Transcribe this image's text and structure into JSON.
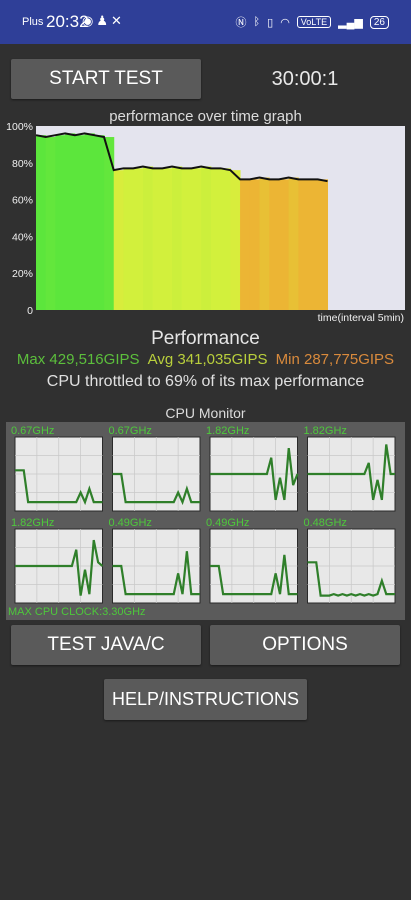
{
  "status_bar": {
    "carrier": "Plus",
    "time": "20:32",
    "network_badge": "VoLTE",
    "battery": "26"
  },
  "controls": {
    "start_label": "START TEST",
    "timer": "30:00:1",
    "java_c_label": "TEST JAVA/C",
    "options_label": "OPTIONS",
    "help_label": "HELP/INSTRUCTIONS"
  },
  "colors": {
    "background": "#303030",
    "max_stat": "#5cbf3c",
    "avg_stat": "#b9cf3c",
    "min_stat": "#d98a3c",
    "plot_line": "#2f7f2a",
    "cpu_text": "#4ec83c"
  },
  "chart_data": [
    {
      "type": "area",
      "title": "performance over time graph",
      "xlabel": "time(interval 5min)",
      "y_ticks": [
        "100%",
        "80%",
        "60%",
        "40%",
        "20%",
        "0"
      ],
      "ylim": [
        0,
        100
      ],
      "xlim": [
        0,
        30
      ],
      "grid": false,
      "x": [
        0,
        1,
        2,
        3,
        4,
        5,
        6,
        7,
        8,
        9,
        10,
        11,
        12,
        13,
        14,
        15,
        16,
        17,
        18,
        19,
        20,
        21,
        22,
        23,
        24,
        25,
        26,
        27,
        28,
        29,
        30
      ],
      "series": [
        {
          "values": [
            95,
            94,
            95,
            96,
            95,
            96,
            95,
            94,
            76,
            77,
            77,
            78,
            77,
            77,
            78,
            77,
            77,
            78,
            77,
            77,
            76,
            71,
            71,
            72,
            71,
            71,
            72,
            71,
            71,
            71,
            70
          ]
        }
      ]
    },
    {
      "type": "line",
      "title": "CPU Monitor",
      "cores": [
        {
          "freq": "0.67GHz",
          "values": [
            0.55,
            0.55,
            0.55,
            0.12,
            0.12,
            0.12,
            0.12,
            0.12,
            0.12,
            0.12,
            0.12,
            0.12,
            0.12,
            0.12,
            0.12,
            0.25,
            0.12,
            0.3,
            0.12,
            0.12,
            0.12
          ]
        },
        {
          "freq": "0.67GHz",
          "values": [
            0.5,
            0.5,
            0.5,
            0.12,
            0.12,
            0.12,
            0.12,
            0.12,
            0.12,
            0.12,
            0.12,
            0.12,
            0.12,
            0.12,
            0.12,
            0.25,
            0.12,
            0.3,
            0.12,
            0.12,
            0.12
          ]
        },
        {
          "freq": "1.82GHz",
          "values": [
            0.5,
            0.5,
            0.5,
            0.5,
            0.5,
            0.5,
            0.5,
            0.5,
            0.5,
            0.5,
            0.5,
            0.5,
            0.5,
            0.5,
            0.72,
            0.15,
            0.45,
            0.15,
            0.85,
            0.35,
            0.5
          ]
        },
        {
          "freq": "1.82GHz",
          "values": [
            0.5,
            0.5,
            0.5,
            0.5,
            0.5,
            0.5,
            0.5,
            0.5,
            0.5,
            0.5,
            0.5,
            0.5,
            0.5,
            0.5,
            0.65,
            0.15,
            0.42,
            0.15,
            0.9,
            0.5,
            0.5
          ]
        },
        {
          "freq": "1.82GHz",
          "values": [
            0.5,
            0.5,
            0.5,
            0.5,
            0.5,
            0.5,
            0.5,
            0.5,
            0.5,
            0.5,
            0.5,
            0.5,
            0.5,
            0.5,
            0.72,
            0.1,
            0.45,
            0.12,
            0.85,
            0.55,
            0.5
          ]
        },
        {
          "freq": "0.49GHz",
          "values": [
            0.5,
            0.5,
            0.5,
            0.12,
            0.12,
            0.12,
            0.12,
            0.12,
            0.12,
            0.12,
            0.12,
            0.12,
            0.12,
            0.12,
            0.12,
            0.4,
            0.12,
            0.7,
            0.12,
            0.12,
            0.12
          ]
        },
        {
          "freq": "0.49GHz",
          "values": [
            0.5,
            0.5,
            0.5,
            0.12,
            0.12,
            0.12,
            0.12,
            0.12,
            0.12,
            0.12,
            0.12,
            0.12,
            0.12,
            0.12,
            0.12,
            0.4,
            0.12,
            0.65,
            0.12,
            0.12,
            0.12
          ]
        },
        {
          "freq": "0.48GHz",
          "values": [
            0.55,
            0.55,
            0.55,
            0.1,
            0.1,
            0.1,
            0.12,
            0.1,
            0.12,
            0.1,
            0.12,
            0.1,
            0.12,
            0.1,
            0.12,
            0.1,
            0.12,
            0.3,
            0.12,
            0.12,
            0.12
          ]
        }
      ]
    }
  ],
  "performance": {
    "heading": "Performance",
    "max": "Max 429,516GIPS",
    "avg": "Avg 341,035GIPS",
    "min": "Min 287,775GIPS",
    "throttle": "CPU throttled to 69% of its max performance"
  },
  "cpu_monitor": {
    "title": "CPU Monitor",
    "max_clock": "MAX CPU CLOCK:3.30GHz"
  }
}
